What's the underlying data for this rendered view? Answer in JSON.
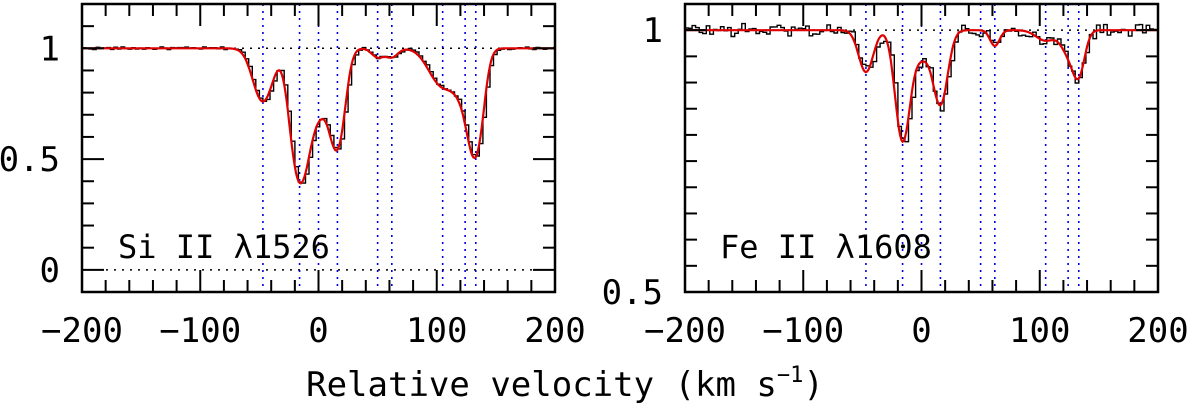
{
  "figure": {
    "xlabel": "Relative velocity (km s",
    "xlabel_exp": "−1",
    "xlabel_close": ")"
  },
  "colors": {
    "data": "#000000",
    "fit": "#e00000",
    "component_lines": "#0000e0",
    "reference_lines": "#000000"
  },
  "chart_data": [
    {
      "type": "line",
      "label": "Si II λ1526",
      "xlim": [
        -200,
        200
      ],
      "ylim": [
        -0.1,
        1.2
      ],
      "xticks": [
        -200,
        -100,
        0,
        100,
        200
      ],
      "xtick_labels": [
        "−200",
        "−100",
        "0",
        "100",
        "200"
      ],
      "yticks": [
        0,
        0.5,
        1
      ],
      "ytick_labels": [
        "0",
        "0.5",
        "1"
      ],
      "reference_levels": [
        0,
        1
      ],
      "components": [
        -47,
        -16,
        0,
        16,
        50,
        62,
        105,
        124,
        133
      ],
      "absorbers": [
        {
          "v": -47,
          "depth": 0.24,
          "sigma": 8
        },
        {
          "v": -16,
          "depth": 0.58,
          "sigma": 7
        },
        {
          "v": 0,
          "depth": 0.28,
          "sigma": 9
        },
        {
          "v": 16,
          "depth": 0.42,
          "sigma": 6
        },
        {
          "v": 50,
          "depth": 0.04,
          "sigma": 5
        },
        {
          "v": 62,
          "depth": 0.04,
          "sigma": 5
        },
        {
          "v": 105,
          "depth": 0.17,
          "sigma": 11
        },
        {
          "v": 124,
          "depth": 0.18,
          "sigma": 8
        },
        {
          "v": 133,
          "depth": 0.43,
          "sigma": 6
        }
      ],
      "series": [
        {
          "name": "data",
          "style": "histogram"
        },
        {
          "name": "fit",
          "style": "smooth"
        }
      ]
    },
    {
      "type": "line",
      "label": "Fe II λ1608",
      "xlim": [
        -200,
        200
      ],
      "ylim": [
        0.5,
        1.05
      ],
      "xticks": [
        -200,
        -100,
        0,
        100,
        200
      ],
      "xtick_labels": [
        "−200",
        "−100",
        "0",
        "100",
        "200"
      ],
      "yticks": [
        0.5,
        1
      ],
      "ytick_labels": [
        "0.5",
        "1"
      ],
      "reference_levels": [
        1
      ],
      "components": [
        -47,
        -16,
        0,
        16,
        50,
        62,
        105,
        124,
        133
      ],
      "absorbers": [
        {
          "v": -47,
          "depth": 0.08,
          "sigma": 6
        },
        {
          "v": -16,
          "depth": 0.21,
          "sigma": 6
        },
        {
          "v": 0,
          "depth": 0.05,
          "sigma": 7
        },
        {
          "v": 16,
          "depth": 0.14,
          "sigma": 6
        },
        {
          "v": 62,
          "depth": 0.03,
          "sigma": 4
        },
        {
          "v": 105,
          "depth": 0.02,
          "sigma": 8
        },
        {
          "v": 124,
          "depth": 0.04,
          "sigma": 6
        },
        {
          "v": 133,
          "depth": 0.08,
          "sigma": 5
        }
      ],
      "series": [
        {
          "name": "data",
          "style": "histogram"
        },
        {
          "name": "fit",
          "style": "smooth"
        }
      ]
    }
  ]
}
